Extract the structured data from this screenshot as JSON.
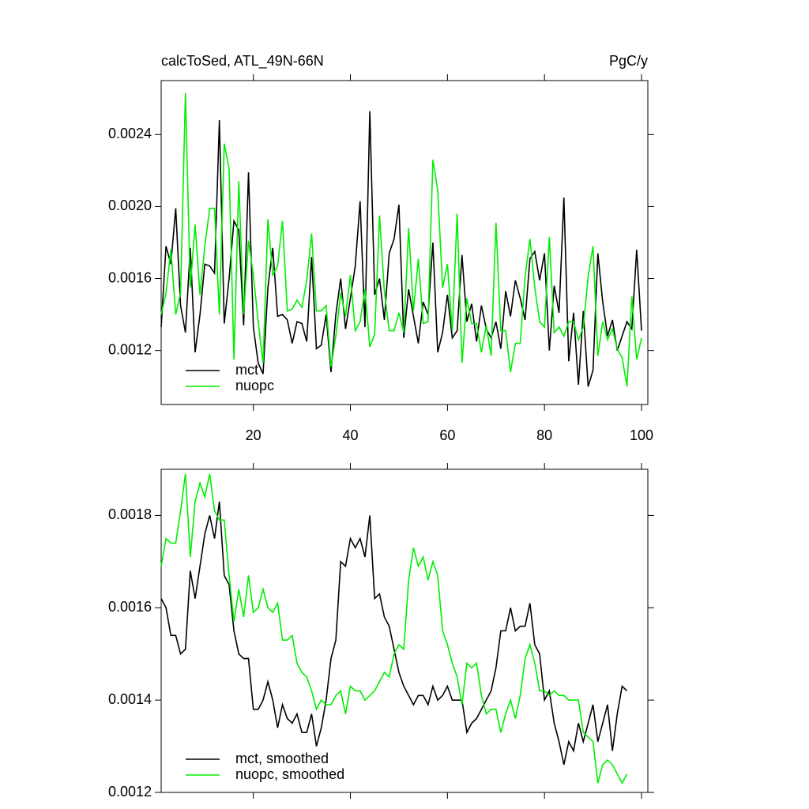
{
  "chart_data": [
    {
      "type": "line",
      "title": "calcToSed, ATL_49N-66N",
      "units": "PgC/y",
      "x": [
        1,
        2,
        3,
        4,
        5,
        6,
        7,
        8,
        9,
        10,
        11,
        12,
        13,
        14,
        15,
        16,
        17,
        18,
        19,
        20,
        21,
        22,
        23,
        24,
        25,
        26,
        27,
        28,
        29,
        30,
        31,
        32,
        33,
        34,
        35,
        36,
        37,
        38,
        39,
        40,
        41,
        42,
        43,
        44,
        45,
        46,
        47,
        48,
        49,
        50,
        51,
        52,
        53,
        54,
        55,
        56,
        57,
        58,
        59,
        60,
        61,
        62,
        63,
        64,
        65,
        66,
        67,
        68,
        69,
        70,
        71,
        72,
        73,
        74,
        75,
        76,
        77,
        78,
        79,
        80,
        81,
        82,
        83,
        84,
        85,
        86,
        87,
        88,
        89,
        90,
        91,
        92,
        93,
        94,
        95,
        96,
        97,
        98,
        99,
        100
      ],
      "series": [
        {
          "name": "mct",
          "color": "#000000",
          "values": [
            0.00133,
            0.00178,
            0.00168,
            0.00199,
            0.00145,
            0.0013,
            0.00177,
            0.00119,
            0.0014,
            0.00168,
            0.00167,
            0.00163,
            0.00248,
            0.00135,
            0.0016,
            0.00192,
            0.00187,
            0.00134,
            0.00219,
            0.00133,
            0.00113,
            0.00107,
            0.00155,
            0.00177,
            0.00139,
            0.0014,
            0.00137,
            0.00124,
            0.00136,
            0.00135,
            0.00125,
            0.00172,
            0.00121,
            0.00123,
            0.0014,
            0.00108,
            0.0014,
            0.0016,
            0.00132,
            0.00149,
            0.00167,
            0.00203,
            0.00133,
            0.00253,
            0.00151,
            0.0016,
            0.00137,
            0.00174,
            0.00182,
            0.00201,
            0.00127,
            0.00154,
            0.00139,
            0.00124,
            0.00147,
            0.0014,
            0.0018,
            0.00119,
            0.0013,
            0.00151,
            0.00127,
            0.00131,
            0.00173,
            0.00136,
            0.00146,
            0.00125,
            0.00145,
            0.00132,
            0.00127,
            0.00136,
            0.00121,
            0.00153,
            0.00139,
            0.00159,
            0.00149,
            0.00137,
            0.00171,
            0.00175,
            0.00159,
            0.00174,
            0.0012,
            0.00156,
            0.00141,
            0.00205,
            0.00114,
            0.00141,
            0.00101,
            0.00142,
            0.001,
            0.00109,
            0.00174,
            0.00147,
            0.00128,
            0.00137,
            0.0012,
            0.00128,
            0.00136,
            0.00132,
            0.00176,
            0.00131
          ]
        },
        {
          "name": "nuopc",
          "color": "#00ee00",
          "values": [
            0.0014,
            0.00152,
            0.00176,
            0.0014,
            0.00152,
            0.00263,
            0.00155,
            0.0019,
            0.00151,
            0.00178,
            0.00199,
            0.00199,
            0.0014,
            0.00235,
            0.00221,
            0.00115,
            0.00214,
            0.0014,
            0.00181,
            0.00162,
            0.00136,
            0.00113,
            0.00193,
            0.00162,
            0.00167,
            0.00192,
            0.00142,
            0.00143,
            0.00148,
            0.00144,
            0.00159,
            0.00185,
            0.00142,
            0.00142,
            0.00145,
            0.00111,
            0.00128,
            0.00152,
            0.00139,
            0.00162,
            0.00131,
            0.00136,
            0.00154,
            0.00122,
            0.00129,
            0.00195,
            0.00153,
            0.00131,
            0.00131,
            0.00141,
            0.0013,
            0.00188,
            0.00142,
            0.00171,
            0.00135,
            0.00136,
            0.00226,
            0.00209,
            0.00155,
            0.00168,
            0.00131,
            0.00196,
            0.00113,
            0.00149,
            0.00135,
            0.00135,
            0.00119,
            0.00134,
            0.00117,
            0.00191,
            0.00131,
            0.00131,
            0.00108,
            0.00124,
            0.00124,
            0.00161,
            0.00182,
            0.00155,
            0.00136,
            0.00133,
            0.00183,
            0.0013,
            0.00133,
            0.00128,
            0.00136,
            0.00136,
            0.00126,
            0.00133,
            0.00161,
            0.00178,
            0.00117,
            0.00136,
            0.00126,
            0.00132,
            0.00121,
            0.00116,
            0.001,
            0.0015,
            0.00115,
            0.00127
          ]
        }
      ],
      "xlim": [
        1,
        101.3
      ],
      "ylim": [
        0.0009,
        0.0027
      ],
      "xticks": [
        20,
        40,
        60,
        80,
        100
      ],
      "yticks": [
        0.0012,
        0.0016,
        {
          "value": 0.002,
          "label": "0.0020"
        },
        0.0024
      ]
    },
    {
      "type": "line",
      "x": [
        1,
        2,
        3,
        4,
        5,
        6,
        7,
        8,
        9,
        10,
        11,
        12,
        13,
        14,
        15,
        16,
        17,
        18,
        19,
        20,
        21,
        22,
        23,
        24,
        25,
        26,
        27,
        28,
        29,
        30,
        31,
        32,
        33,
        34,
        35,
        36,
        37,
        38,
        39,
        40,
        41,
        42,
        43,
        44,
        45,
        46,
        47,
        48,
        49,
        50,
        51,
        52,
        53,
        54,
        55,
        56,
        57,
        58,
        59,
        60,
        61,
        62,
        63,
        64,
        65,
        66,
        67,
        68,
        69,
        70,
        71,
        72,
        73,
        74,
        75,
        76,
        77,
        78,
        79,
        80,
        81,
        82,
        83,
        84,
        85,
        86,
        87,
        88,
        89,
        90,
        91,
        92,
        93,
        94,
        95,
        96,
        97
      ],
      "series": [
        {
          "name": "mct, smoothed",
          "color": "#000000",
          "values": [
            0.00162,
            0.0016,
            0.00154,
            0.00154,
            0.0015,
            0.00151,
            0.00168,
            0.00162,
            0.00169,
            0.00176,
            0.0018,
            0.00175,
            0.00183,
            0.00167,
            0.00165,
            0.00155,
            0.0015,
            0.00149,
            0.00149,
            0.00138,
            0.00138,
            0.0014,
            0.00144,
            0.0014,
            0.00134,
            0.00139,
            0.00136,
            0.00135,
            0.00137,
            0.00133,
            0.00133,
            0.00137,
            0.0013,
            0.00134,
            0.0014,
            0.00149,
            0.00153,
            0.0017,
            0.00169,
            0.00175,
            0.00173,
            0.00175,
            0.00171,
            0.0018,
            0.00162,
            0.00163,
            0.00158,
            0.00156,
            0.00151,
            0.00146,
            0.00143,
            0.00141,
            0.00139,
            0.00141,
            0.00141,
            0.00139,
            0.00143,
            0.0014,
            0.00141,
            0.00143,
            0.0014,
            0.0014,
            0.0014,
            0.00133,
            0.00135,
            0.00136,
            0.00138,
            0.0014,
            0.00142,
            0.00147,
            0.00155,
            0.00155,
            0.0016,
            0.00155,
            0.00156,
            0.00156,
            0.00161,
            0.00152,
            0.0015,
            0.0014,
            0.00142,
            0.00135,
            0.00131,
            0.00126,
            0.00131,
            0.00129,
            0.00135,
            0.00131,
            0.00135,
            0.00139,
            0.00131,
            0.00135,
            0.00139,
            0.00129,
            0.00137,
            0.00143,
            0.00142
          ]
        },
        {
          "name": "nuopc, smoothed",
          "color": "#00ee00",
          "values": [
            0.00169,
            0.00175,
            0.00174,
            0.00174,
            0.00181,
            0.00189,
            0.00171,
            0.00183,
            0.00187,
            0.00184,
            0.00189,
            0.00181,
            0.00179,
            0.00179,
            0.00167,
            0.00157,
            0.00164,
            0.00158,
            0.00167,
            0.00159,
            0.0016,
            0.00164,
            0.0016,
            0.00159,
            0.00161,
            0.00153,
            0.00153,
            0.00154,
            0.00148,
            0.00146,
            0.00145,
            0.00142,
            0.00138,
            0.0014,
            0.00139,
            0.00139,
            0.00141,
            0.00142,
            0.00137,
            0.00143,
            0.00142,
            0.00142,
            0.0014,
            0.00141,
            0.00142,
            0.00144,
            0.00146,
            0.00145,
            0.0015,
            0.00152,
            0.00151,
            0.00166,
            0.00173,
            0.00169,
            0.00171,
            0.00166,
            0.0017,
            0.00167,
            0.00155,
            0.00152,
            0.00148,
            0.00145,
            0.00139,
            0.00148,
            0.00147,
            0.00148,
            0.00141,
            0.00137,
            0.00138,
            0.00138,
            0.00133,
            0.00137,
            0.0014,
            0.00136,
            0.00141,
            0.00149,
            0.00152,
            0.00148,
            0.00142,
            0.00142,
            0.00141,
            0.00142,
            0.00141,
            0.00141,
            0.0014,
            0.0014,
            0.0014,
            0.00133,
            0.00132,
            0.00131,
            0.00122,
            0.00126,
            0.00127,
            0.00126,
            0.00124,
            0.00122,
            0.00124
          ]
        }
      ],
      "xlim": [
        1,
        101.3
      ],
      "ylim": [
        0.0012,
        0.0019
      ],
      "xticks": [
        20,
        40,
        60,
        80,
        100
      ],
      "yticks": [
        0.0012,
        0.0014,
        0.0016,
        0.0018
      ]
    }
  ]
}
